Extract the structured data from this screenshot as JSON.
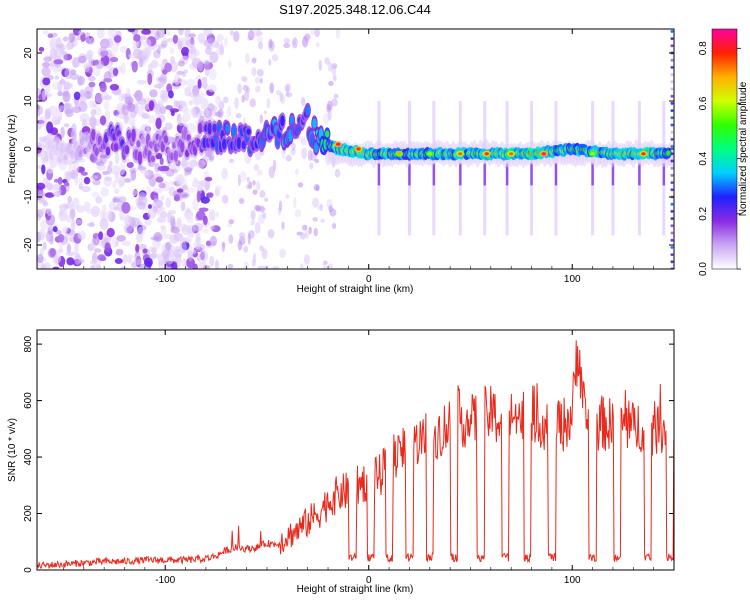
{
  "title": "S197.2025.348.12.06.C44",
  "chart_data": [
    {
      "type": "heatmap",
      "title": "S197.2025.348.12.06.C44",
      "xlabel": "Height of straight line (km)",
      "ylabel": "Frequency (Hz)",
      "xlim": [
        -163,
        150
      ],
      "ylim": [
        -25,
        25
      ],
      "xticks": [
        -100,
        0,
        100
      ],
      "xtick_labels": [
        "-100",
        "0",
        "100"
      ],
      "yticks": [
        20,
        10,
        0,
        -10,
        -20
      ],
      "ytick_labels": [
        "20",
        "10",
        "0",
        "-10",
        "-20"
      ],
      "colorbar": {
        "label": "Normalized spectral amplitude",
        "range": [
          0,
          0.87
        ],
        "ticks": [
          0.0,
          0.2,
          0.4,
          0.6,
          0.8
        ],
        "tick_labels": [
          "0.0",
          "0.2",
          "0.4",
          "0.6",
          "0.8"
        ],
        "colors": [
          "#ffffff",
          "#c9a6f5",
          "#8a2be2",
          "#2020ff",
          "#00d0ff",
          "#00ff80",
          "#30ff00",
          "#d0ff00",
          "#ffb000",
          "#ff2000",
          "#ff00a0"
        ]
      },
      "ridge": [
        {
          "x": -160,
          "f": 0,
          "amp": 0.05
        },
        {
          "x": -140,
          "f": 1,
          "amp": 0.12
        },
        {
          "x": -125,
          "f": 2,
          "amp": 0.25
        },
        {
          "x": -110,
          "f": 0,
          "amp": 0.15
        },
        {
          "x": -90,
          "f": 1,
          "amp": 0.18
        },
        {
          "x": -75,
          "f": 3,
          "amp": 0.3
        },
        {
          "x": -55,
          "f": 2,
          "amp": 0.32
        },
        {
          "x": -40,
          "f": 4,
          "amp": 0.35
        },
        {
          "x": -30,
          "f": 6,
          "amp": 0.3
        },
        {
          "x": -25,
          "f": 2,
          "amp": 0.4
        },
        {
          "x": -15,
          "f": 0,
          "amp": 0.65
        },
        {
          "x": 0,
          "f": -1,
          "amp": 0.7
        },
        {
          "x": 20,
          "f": -1,
          "amp": 0.6
        },
        {
          "x": 40,
          "f": -1,
          "amp": 0.7
        },
        {
          "x": 60,
          "f": -1,
          "amp": 0.7
        },
        {
          "x": 80,
          "f": -1,
          "amp": 0.75
        },
        {
          "x": 100,
          "f": 0,
          "amp": 0.6
        },
        {
          "x": 120,
          "f": -1,
          "amp": 0.7
        },
        {
          "x": 140,
          "f": -1,
          "amp": 0.75
        },
        {
          "x": 148,
          "f": -1,
          "amp": 0.5
        }
      ],
      "hotspots": [
        {
          "x": -15,
          "f": 1,
          "amp": 0.85
        },
        {
          "x": -5,
          "f": 0,
          "amp": 0.8
        },
        {
          "x": 15,
          "f": -1,
          "amp": 0.7
        },
        {
          "x": 30,
          "f": -1,
          "amp": 0.6
        },
        {
          "x": 45,
          "f": -1,
          "amp": 0.75
        },
        {
          "x": 58,
          "f": -1,
          "amp": 0.8
        },
        {
          "x": 70,
          "f": -1,
          "amp": 0.75
        },
        {
          "x": 86,
          "f": -1,
          "amp": 0.85
        },
        {
          "x": 110,
          "f": -1,
          "amp": 0.6
        },
        {
          "x": 135,
          "f": -1,
          "amp": 0.8
        }
      ],
      "vertical_streaks_x": [
        5,
        20,
        32,
        45,
        57,
        68,
        80,
        92,
        110,
        120,
        133,
        145
      ]
    },
    {
      "type": "line",
      "xlabel": "Height of straight line (km)",
      "ylabel": "SNR (10 * v/v)",
      "xlim": [
        -163,
        150
      ],
      "ylim": [
        0,
        850
      ],
      "xticks": [
        -100,
        0,
        100
      ],
      "xtick_labels": [
        "-100",
        "0",
        "100"
      ],
      "yticks": [
        0,
        200,
        400,
        600,
        800
      ],
      "ytick_labels": [
        "0",
        "200",
        "400",
        "600",
        "800"
      ],
      "color": "#e8291c",
      "series": [
        {
          "name": "SNR",
          "x": [
            -163,
            -150,
            -140,
            -130,
            -120,
            -110,
            -100,
            -90,
            -80,
            -75,
            -70,
            -65,
            -60,
            -55,
            -50,
            -45,
            -40,
            -35,
            -30,
            -25,
            -20,
            -15,
            -10,
            -5,
            0,
            5,
            10,
            15,
            20,
            25,
            30,
            35,
            40,
            45,
            50,
            55,
            60,
            65,
            70,
            75,
            80,
            85,
            90,
            95,
            100,
            103,
            106,
            110,
            115,
            120,
            125,
            130,
            135,
            140,
            145,
            150
          ],
          "y": [
            15,
            20,
            25,
            30,
            30,
            35,
            35,
            35,
            40,
            50,
            70,
            80,
            75,
            80,
            95,
            90,
            120,
            140,
            170,
            200,
            240,
            270,
            280,
            300,
            320,
            330,
            380,
            420,
            440,
            460,
            480,
            490,
            520,
            540,
            520,
            550,
            550,
            530,
            560,
            540,
            560,
            520,
            540,
            510,
            550,
            820,
            530,
            520,
            520,
            510,
            520,
            500,
            520,
            500,
            510,
            460
          ]
        }
      ],
      "dropouts_x": [
        -8,
        1,
        10,
        20,
        30,
        42,
        55,
        67,
        78,
        90,
        110,
        122,
        137,
        148
      ]
    }
  ]
}
